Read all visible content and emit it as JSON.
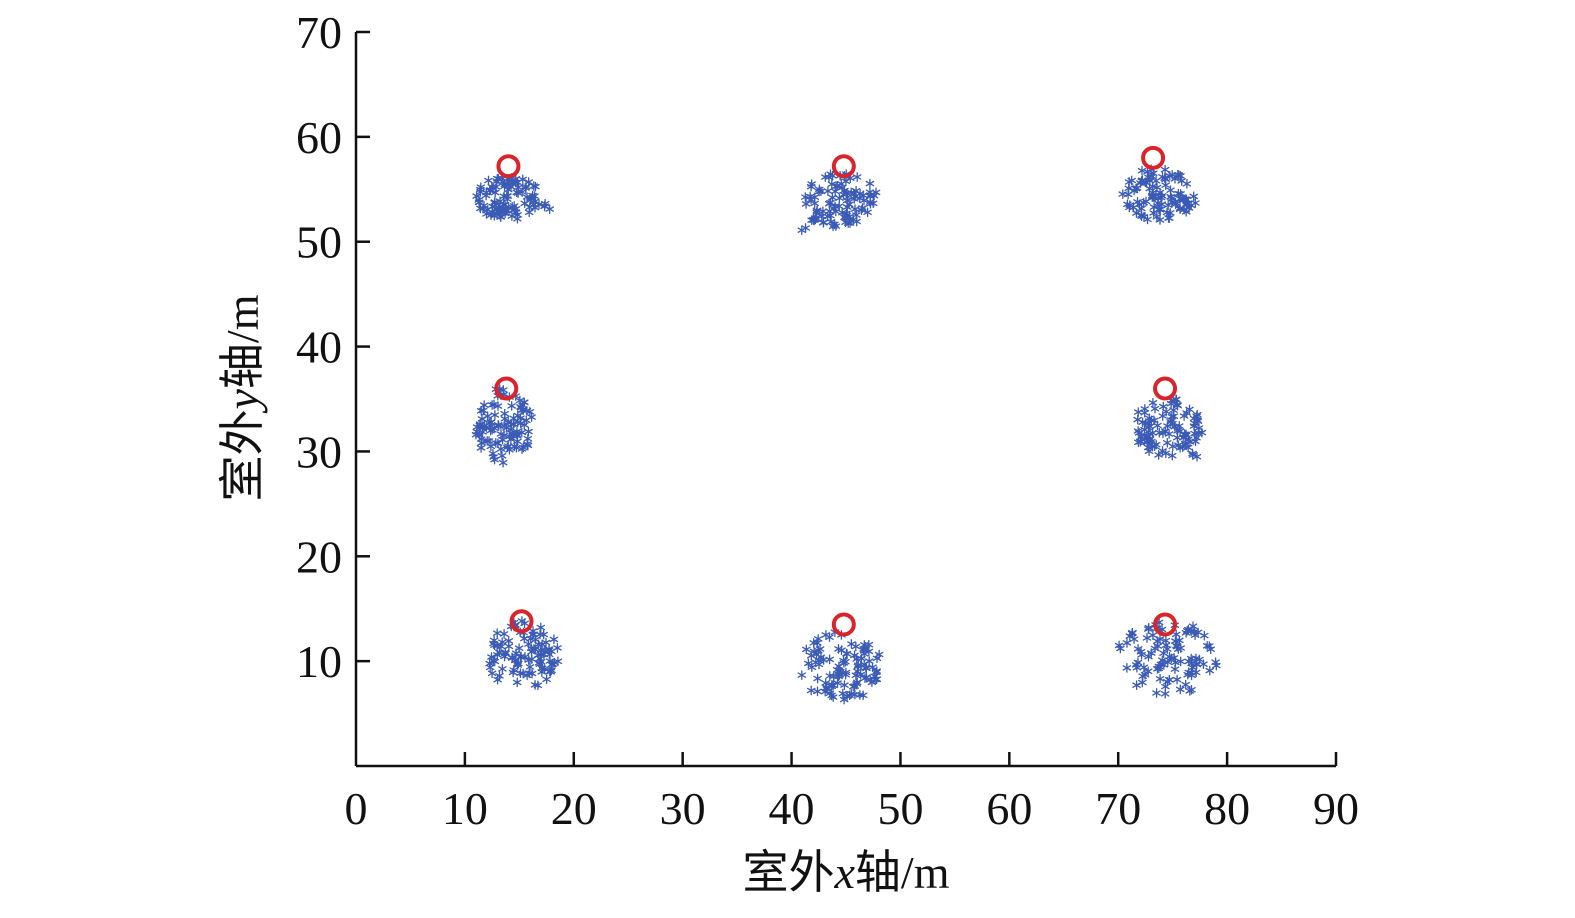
{
  "chart_data": {
    "type": "scatter",
    "title": "",
    "xlabel": {
      "prefix": "室外",
      "var": "x",
      "suffix": "轴/m"
    },
    "ylabel": {
      "prefix": "室外",
      "var": "y",
      "suffix": "轴/m"
    },
    "xlim": [
      0,
      90
    ],
    "ylim": [
      0,
      70
    ],
    "xticks": [
      0,
      10,
      20,
      30,
      40,
      50,
      60,
      70,
      80,
      90
    ],
    "yticks": [
      10,
      20,
      30,
      40,
      50,
      60,
      70
    ],
    "x_tick_labels": [
      "0",
      "10",
      "20",
      "30",
      "40",
      "50",
      "60",
      "70",
      "80",
      "90"
    ],
    "y_tick_labels": [
      "10",
      "20",
      "30",
      "40",
      "50",
      "60",
      "70"
    ],
    "grid": false,
    "legend": "none",
    "series": [
      {
        "marker": "asterisk",
        "color": "#3a5bb5",
        "clusters": [
          {
            "center": [
              14.0,
              54.2
            ],
            "rx": 3.0,
            "ry": 2.1,
            "tail": [
              18.5,
              53.0
            ]
          },
          {
            "center": [
              44.5,
              54.0
            ],
            "rx": 3.4,
            "ry": 2.6,
            "tail": [
              41.0,
              51.3
            ]
          },
          {
            "center": [
              73.7,
              54.5
            ],
            "rx": 3.3,
            "ry": 2.6,
            "tail": [
              77.0,
              53.5
            ]
          },
          {
            "center": [
              13.6,
              32.5
            ],
            "rx": 2.7,
            "ry": 3.8,
            "tail": [
              11.0,
              32.5
            ]
          },
          {
            "center": [
              74.5,
              32.3
            ],
            "rx": 3.3,
            "ry": 2.8,
            "tail": [
              77.2,
              29.3
            ]
          },
          {
            "center": [
              15.3,
              10.6
            ],
            "rx": 3.4,
            "ry": 3.3,
            "tail": [
              18.0,
              11.0
            ]
          },
          {
            "center": [
              44.5,
              9.5
            ],
            "rx": 3.9,
            "ry": 3.3,
            "tail": [
              47.5,
              8.0
            ]
          },
          {
            "center": [
              74.5,
              10.3
            ],
            "rx": 4.8,
            "ry": 3.5,
            "tail": [
              78.0,
              10.0
            ]
          }
        ]
      },
      {
        "marker": "circle",
        "color": "#d9252a",
        "points": [
          [
            14.0,
            57.2
          ],
          [
            44.8,
            57.2
          ],
          [
            73.2,
            58.0
          ],
          [
            13.8,
            36.0
          ],
          [
            74.3,
            36.0
          ],
          [
            15.2,
            13.8
          ],
          [
            44.8,
            13.5
          ],
          [
            74.3,
            13.5
          ]
        ]
      }
    ]
  }
}
